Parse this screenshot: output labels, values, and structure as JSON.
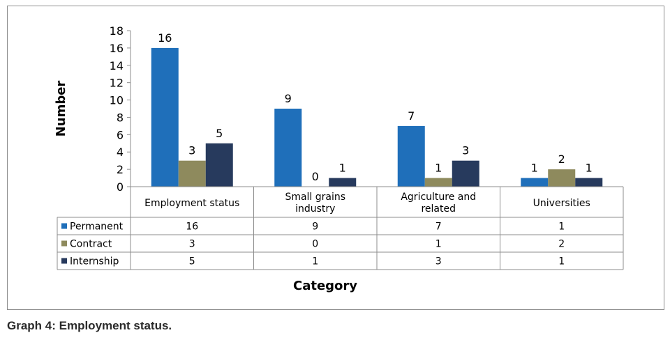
{
  "caption": "Graph 4: Employment status.",
  "chart_data": {
    "type": "bar",
    "categories": [
      [
        "Employment status"
      ],
      [
        "Small grains",
        "industry"
      ],
      [
        "Agriculture and",
        "related"
      ],
      [
        "Universities"
      ]
    ],
    "series": [
      {
        "name": "Permanent",
        "color": "#1f6fba",
        "values": [
          16,
          9,
          7,
          1
        ]
      },
      {
        "name": "Contract",
        "color": "#8e8a5d",
        "values": [
          3,
          0,
          1,
          2
        ]
      },
      {
        "name": "Internship",
        "color": "#273a5d",
        "values": [
          5,
          1,
          3,
          1
        ]
      }
    ],
    "ylabel": "Number",
    "xlabel": "Category",
    "ylim": [
      0,
      18
    ],
    "yticks": [
      0,
      2,
      4,
      6,
      8,
      10,
      12,
      14,
      16,
      18
    ],
    "legend": "data-table",
    "grid": false
  }
}
